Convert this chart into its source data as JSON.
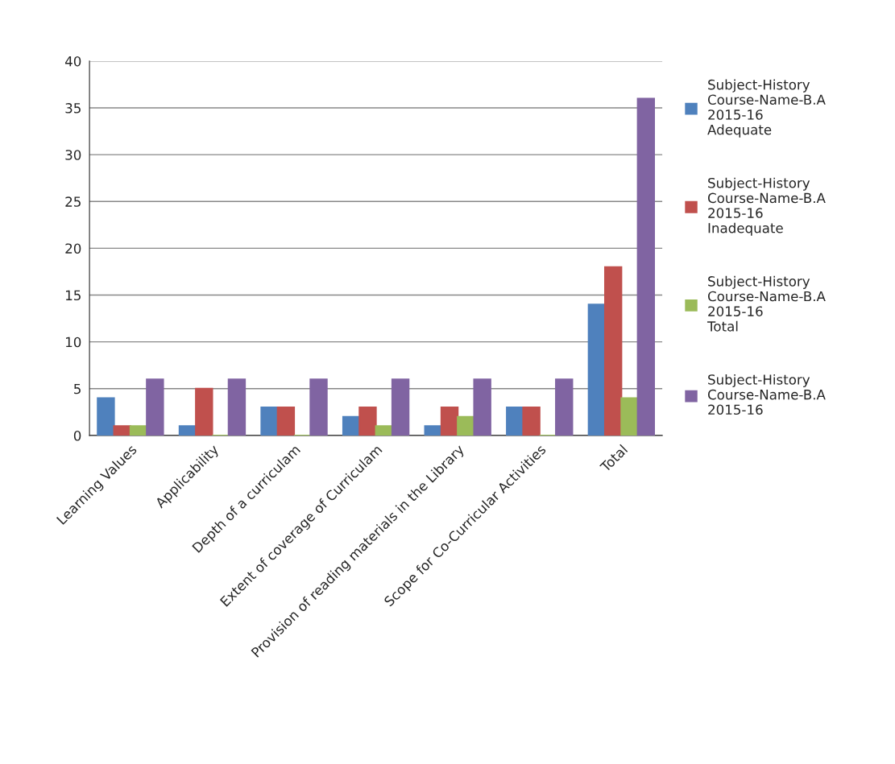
{
  "chart_data": {
    "type": "bar",
    "categories": [
      "Learning Values",
      "Applicability",
      "Depth of a curriculam",
      "Extent of coverage of Curriculam",
      "Provision of reading materials in the Library",
      "Scope for Co-Curricular Activities",
      "Total"
    ],
    "series": [
      {
        "name": "Subject-History\nCourse-Name-B.A\n2015-16\nAdequate",
        "color": "#4f81bd",
        "values": [
          4,
          1,
          3,
          2,
          1,
          3,
          14
        ]
      },
      {
        "name": "Subject-History\nCourse-Name-B.A\n2015-16\nInadequate",
        "color": "#c0504d",
        "values": [
          1,
          5,
          3,
          3,
          3,
          3,
          18
        ]
      },
      {
        "name": "Subject-History\nCourse-Name-B.A\n2015-16\nTotal",
        "color": "#9bbb59",
        "values": [
          1,
          0,
          0,
          1,
          2,
          0,
          4
        ]
      },
      {
        "name": "Subject-History\nCourse-Name-B.A\n2015-16",
        "color": "#8064a2",
        "values": [
          6,
          6,
          6,
          6,
          6,
          6,
          36
        ]
      }
    ],
    "ylim": [
      0,
      40
    ],
    "yticks": [
      0,
      5,
      10,
      15,
      20,
      25,
      30,
      35,
      40
    ],
    "grid": "y",
    "legend": "right"
  }
}
